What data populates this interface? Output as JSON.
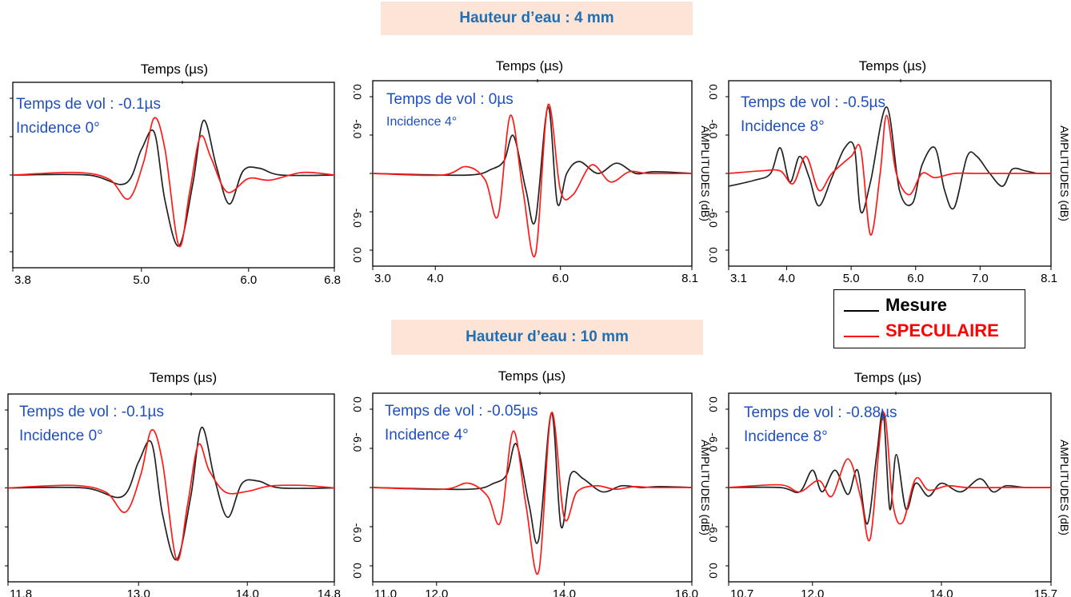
{
  "banners": {
    "top": "Hauteur d’eau : 4 mm",
    "bottom": "Hauteur d’eau : 10 mm"
  },
  "legend": {
    "items": [
      {
        "label": "Mesure",
        "color": "#000000"
      },
      {
        "label": "SPECULAIRE",
        "color": "#ff0000"
      }
    ]
  },
  "colors": {
    "mesure": "#222222",
    "speculaire": "#ff1a1a",
    "annotation": "#1f4fbf"
  },
  "chart_data": [
    {
      "type": "line",
      "xlabel": "Temps (µs)",
      "ylabel": "",
      "ytick_labels": [],
      "xlim": [
        3.8,
        6.8
      ],
      "x_ticks": [
        3.8,
        5.0,
        6.0,
        6.8
      ],
      "annotation": "Temps de vol : -0.1µs",
      "incidence": "Incidence 0°",
      "series": [
        {
          "name": "Mesure",
          "x": [
            3.8,
            4.5,
            4.85,
            5.0,
            5.12,
            5.22,
            5.35,
            5.48,
            5.58,
            5.7,
            5.82,
            5.95,
            6.1,
            6.3,
            6.8
          ],
          "y": [
            0,
            0,
            -0.1,
            0.3,
            0.5,
            -0.3,
            -0.83,
            -0.1,
            0.64,
            0.1,
            -0.34,
            0.05,
            0.08,
            0,
            0
          ]
        },
        {
          "name": "SPECULAIRE",
          "x": [
            3.8,
            4.4,
            4.7,
            4.88,
            5.02,
            5.12,
            5.22,
            5.35,
            5.45,
            5.55,
            5.65,
            5.8,
            6.0,
            6.2,
            6.5,
            6.8
          ],
          "y": [
            0,
            0.03,
            -0.05,
            -0.28,
            0.15,
            0.67,
            0.3,
            -0.83,
            -0.2,
            0.45,
            0.2,
            -0.2,
            -0.04,
            -0.06,
            0.03,
            0
          ]
        }
      ]
    },
    {
      "type": "line",
      "xlabel": "Temps (µs)",
      "ylabel": "AMPLITUDES (dB)",
      "ytick_labels": [
        "0.0",
        "-6.0",
        "-6.0",
        "0.0"
      ],
      "xlim": [
        3.0,
        8.1
      ],
      "x_ticks": [
        3.0,
        4.0,
        6.0,
        8.1
      ],
      "annotation": "Temps de vol : 0µs",
      "incidence": "Incidence 4°",
      "series": [
        {
          "name": "Mesure",
          "x": [
            3.0,
            4.5,
            4.9,
            5.1,
            5.25,
            5.45,
            5.6,
            5.8,
            5.95,
            6.1,
            6.3,
            6.6,
            6.9,
            7.2,
            7.5,
            8.1
          ],
          "y": [
            0,
            -0.02,
            0.05,
            0.15,
            0.44,
            -0.2,
            -0.55,
            0.78,
            -0.35,
            0.0,
            0.14,
            0.0,
            0.12,
            0,
            0.02,
            0
          ]
        },
        {
          "name": "SPECULAIRE",
          "x": [
            3.0,
            4.1,
            4.5,
            4.8,
            5.0,
            5.2,
            5.4,
            5.6,
            5.8,
            6.0,
            6.2,
            6.5,
            6.8,
            7.1,
            7.4,
            8.1
          ],
          "y": [
            0,
            -0.02,
            0.08,
            -0.08,
            -0.5,
            0.68,
            -0.2,
            -0.95,
            0.8,
            -0.2,
            -0.25,
            0.1,
            -0.1,
            0.02,
            0,
            0
          ]
        }
      ]
    },
    {
      "type": "line",
      "xlabel": "Temps (µs)",
      "ylabel": "AMPLITUDES (dB)",
      "ytick_labels": [
        "0.0",
        "-6.0",
        "-6.0",
        "0.0"
      ],
      "xlim": [
        3.1,
        8.1
      ],
      "x_ticks": [
        3.1,
        4.0,
        5.0,
        6.0,
        7.0,
        8.1
      ],
      "annotation": "Temps de vol : -0.5µs",
      "incidence": "Incidence 8°",
      "series": [
        {
          "name": "Mesure",
          "x": [
            3.1,
            3.5,
            3.75,
            3.9,
            4.05,
            4.2,
            4.35,
            4.5,
            4.7,
            4.9,
            5.05,
            5.15,
            5.3,
            5.55,
            5.75,
            5.95,
            6.1,
            6.3,
            6.45,
            6.6,
            6.8,
            6.95,
            7.15,
            7.35,
            7.5,
            7.7,
            7.9,
            8.1
          ],
          "y": [
            -0.15,
            -0.08,
            0.0,
            0.3,
            -0.1,
            0.2,
            -0.05,
            -0.38,
            -0.05,
            0.3,
            0.3,
            -0.45,
            -0.1,
            0.78,
            -0.2,
            -0.35,
            0.1,
            0.3,
            -0.2,
            -0.4,
            0.2,
            0.2,
            0,
            -0.15,
            0.05,
            0.03,
            0,
            0
          ]
        },
        {
          "name": "SPECULAIRE",
          "x": [
            3.1,
            3.6,
            3.9,
            4.1,
            4.3,
            4.5,
            4.7,
            5.0,
            5.15,
            5.3,
            5.45,
            5.55,
            5.7,
            5.9,
            6.1,
            6.3,
            6.6,
            7.0,
            8.1
          ],
          "y": [
            0,
            0.03,
            0.03,
            -0.12,
            0.2,
            -0.2,
            0.0,
            0.2,
            0.28,
            -0.72,
            0.0,
            0.68,
            0.0,
            -0.25,
            0.0,
            -0.05,
            0,
            0,
            0
          ]
        }
      ]
    },
    {
      "type": "line",
      "xlabel": "Temps (µs)",
      "ylabel": "",
      "ytick_labels": [],
      "xlim": [
        11.8,
        14.8
      ],
      "x_ticks": [
        11.8,
        13.0,
        14.0,
        14.8
      ],
      "annotation": "Temps de vol : -0.1µs",
      "incidence": "Incidence 0°",
      "series": [
        {
          "name": "Mesure",
          "x": [
            11.8,
            12.5,
            12.85,
            13.0,
            13.12,
            13.22,
            13.35,
            13.48,
            13.58,
            13.7,
            13.82,
            13.95,
            14.1,
            14.3,
            14.8
          ],
          "y": [
            0,
            0,
            -0.1,
            0.3,
            0.52,
            -0.3,
            -0.83,
            -0.1,
            0.7,
            0.1,
            -0.34,
            0.05,
            0.08,
            0,
            0
          ]
        },
        {
          "name": "SPECULAIRE",
          "x": [
            11.8,
            12.4,
            12.7,
            12.88,
            13.02,
            13.12,
            13.22,
            13.35,
            13.45,
            13.55,
            13.65,
            13.8,
            14.0,
            14.2,
            14.5,
            14.8
          ],
          "y": [
            0,
            0.03,
            -0.05,
            -0.28,
            0.15,
            0.67,
            0.3,
            -0.83,
            -0.2,
            0.5,
            0.2,
            -0.05,
            -0.04,
            0.02,
            0.03,
            0
          ]
        }
      ]
    },
    {
      "type": "line",
      "xlabel": "Temps (µs)",
      "ylabel": "AMPLITUDES (dB)",
      "ytick_labels": [
        "0.0",
        "-6.0",
        "-6.0",
        "0.0"
      ],
      "xlim": [
        11.0,
        16.0
      ],
      "x_ticks": [
        11.0,
        12.0,
        14.0,
        16.0
      ],
      "annotation": "Temps de vol : -0.05µs",
      "incidence": "Incidence 4°",
      "series": [
        {
          "name": "Mesure",
          "x": [
            11.0,
            12.5,
            12.9,
            13.1,
            13.25,
            13.45,
            13.6,
            13.8,
            13.95,
            14.1,
            14.3,
            14.6,
            14.9,
            15.2,
            15.5,
            16.0
          ],
          "y": [
            0,
            -0.02,
            0.05,
            0.15,
            0.5,
            -0.2,
            -0.6,
            0.86,
            -0.45,
            0.15,
            0.1,
            -0.05,
            0.02,
            0,
            0.01,
            0
          ]
        },
        {
          "name": "SPECULAIRE",
          "x": [
            11.0,
            12.1,
            12.5,
            12.8,
            13.0,
            13.2,
            13.4,
            13.6,
            13.8,
            14.0,
            14.2,
            14.5,
            14.8,
            15.1,
            15.4,
            16.0
          ],
          "y": [
            0,
            -0.02,
            0.05,
            -0.1,
            -0.4,
            0.65,
            -0.2,
            -0.97,
            0.86,
            -0.35,
            -0.05,
            0.02,
            -0.02,
            0.01,
            0,
            0
          ]
        }
      ]
    },
    {
      "type": "line",
      "xlabel": "Temps (µs)",
      "ylabel": "AMPLITUDES (dB)",
      "ytick_labels": [
        "0.0",
        "-6.0",
        "-6.0",
        "0.0"
      ],
      "xlim": [
        10.7,
        15.7
      ],
      "x_ticks": [
        10.7,
        12.0,
        14.0,
        15.7
      ],
      "annotation": "Temps de vol : -0.88µs",
      "incidence": "Incidence 8°",
      "series": [
        {
          "name": "Mesure",
          "x": [
            10.7,
            11.5,
            11.8,
            12.0,
            12.15,
            12.35,
            12.55,
            12.7,
            12.85,
            13.0,
            13.1,
            13.2,
            13.3,
            13.45,
            13.6,
            13.8,
            14.0,
            14.3,
            14.6,
            14.8,
            15.0,
            15.3,
            15.7
          ],
          "y": [
            0,
            0,
            -0.05,
            0.2,
            -0.05,
            0.2,
            -0.08,
            0.2,
            -0.42,
            0.4,
            0.86,
            -0.25,
            0.38,
            -0.25,
            0.05,
            -0.1,
            0.05,
            -0.05,
            0.1,
            -0.05,
            0.02,
            0,
            0
          ]
        },
        {
          "name": "SPECULAIRE",
          "x": [
            10.7,
            11.5,
            11.8,
            12.1,
            12.3,
            12.55,
            12.75,
            12.9,
            13.1,
            13.25,
            13.4,
            13.6,
            13.8,
            14.1,
            14.4,
            15.0,
            15.7
          ],
          "y": [
            0,
            0.03,
            -0.05,
            0.08,
            -0.1,
            0.33,
            -0.12,
            -0.58,
            0.86,
            -0.2,
            -0.4,
            0.1,
            -0.03,
            0.02,
            0,
            0,
            0
          ]
        }
      ]
    }
  ]
}
